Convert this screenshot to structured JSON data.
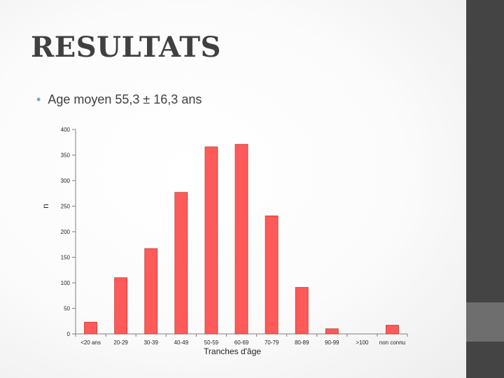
{
  "slide": {
    "title": "RESULTATS",
    "bullet": "Age moyen 55,3 ± 16,3 ans"
  },
  "colors": {
    "bar_fill": "#ff5a5a",
    "bar_stroke": "#c0392b",
    "title": "#404040",
    "bullet_dot": "#7aa7c7",
    "sidebar_dark": "#444444",
    "sidebar_light": "#6e6e6e"
  },
  "chart_data": {
    "type": "bar",
    "xlabel": "Tranches d'âge",
    "ylabel": "n",
    "categories": [
      "<20 ans",
      "20-29",
      "30-39",
      "40-49",
      "50-59",
      "60-69",
      "70-79",
      "80-89",
      "90-99",
      ">100",
      "non connu"
    ],
    "values": [
      23,
      110,
      167,
      277,
      366,
      371,
      231,
      91,
      10,
      0,
      17
    ],
    "ylim": [
      0,
      400
    ],
    "yticks": [
      0,
      50,
      100,
      150,
      200,
      250,
      300,
      350,
      400
    ],
    "grid": false,
    "legend": "none"
  }
}
